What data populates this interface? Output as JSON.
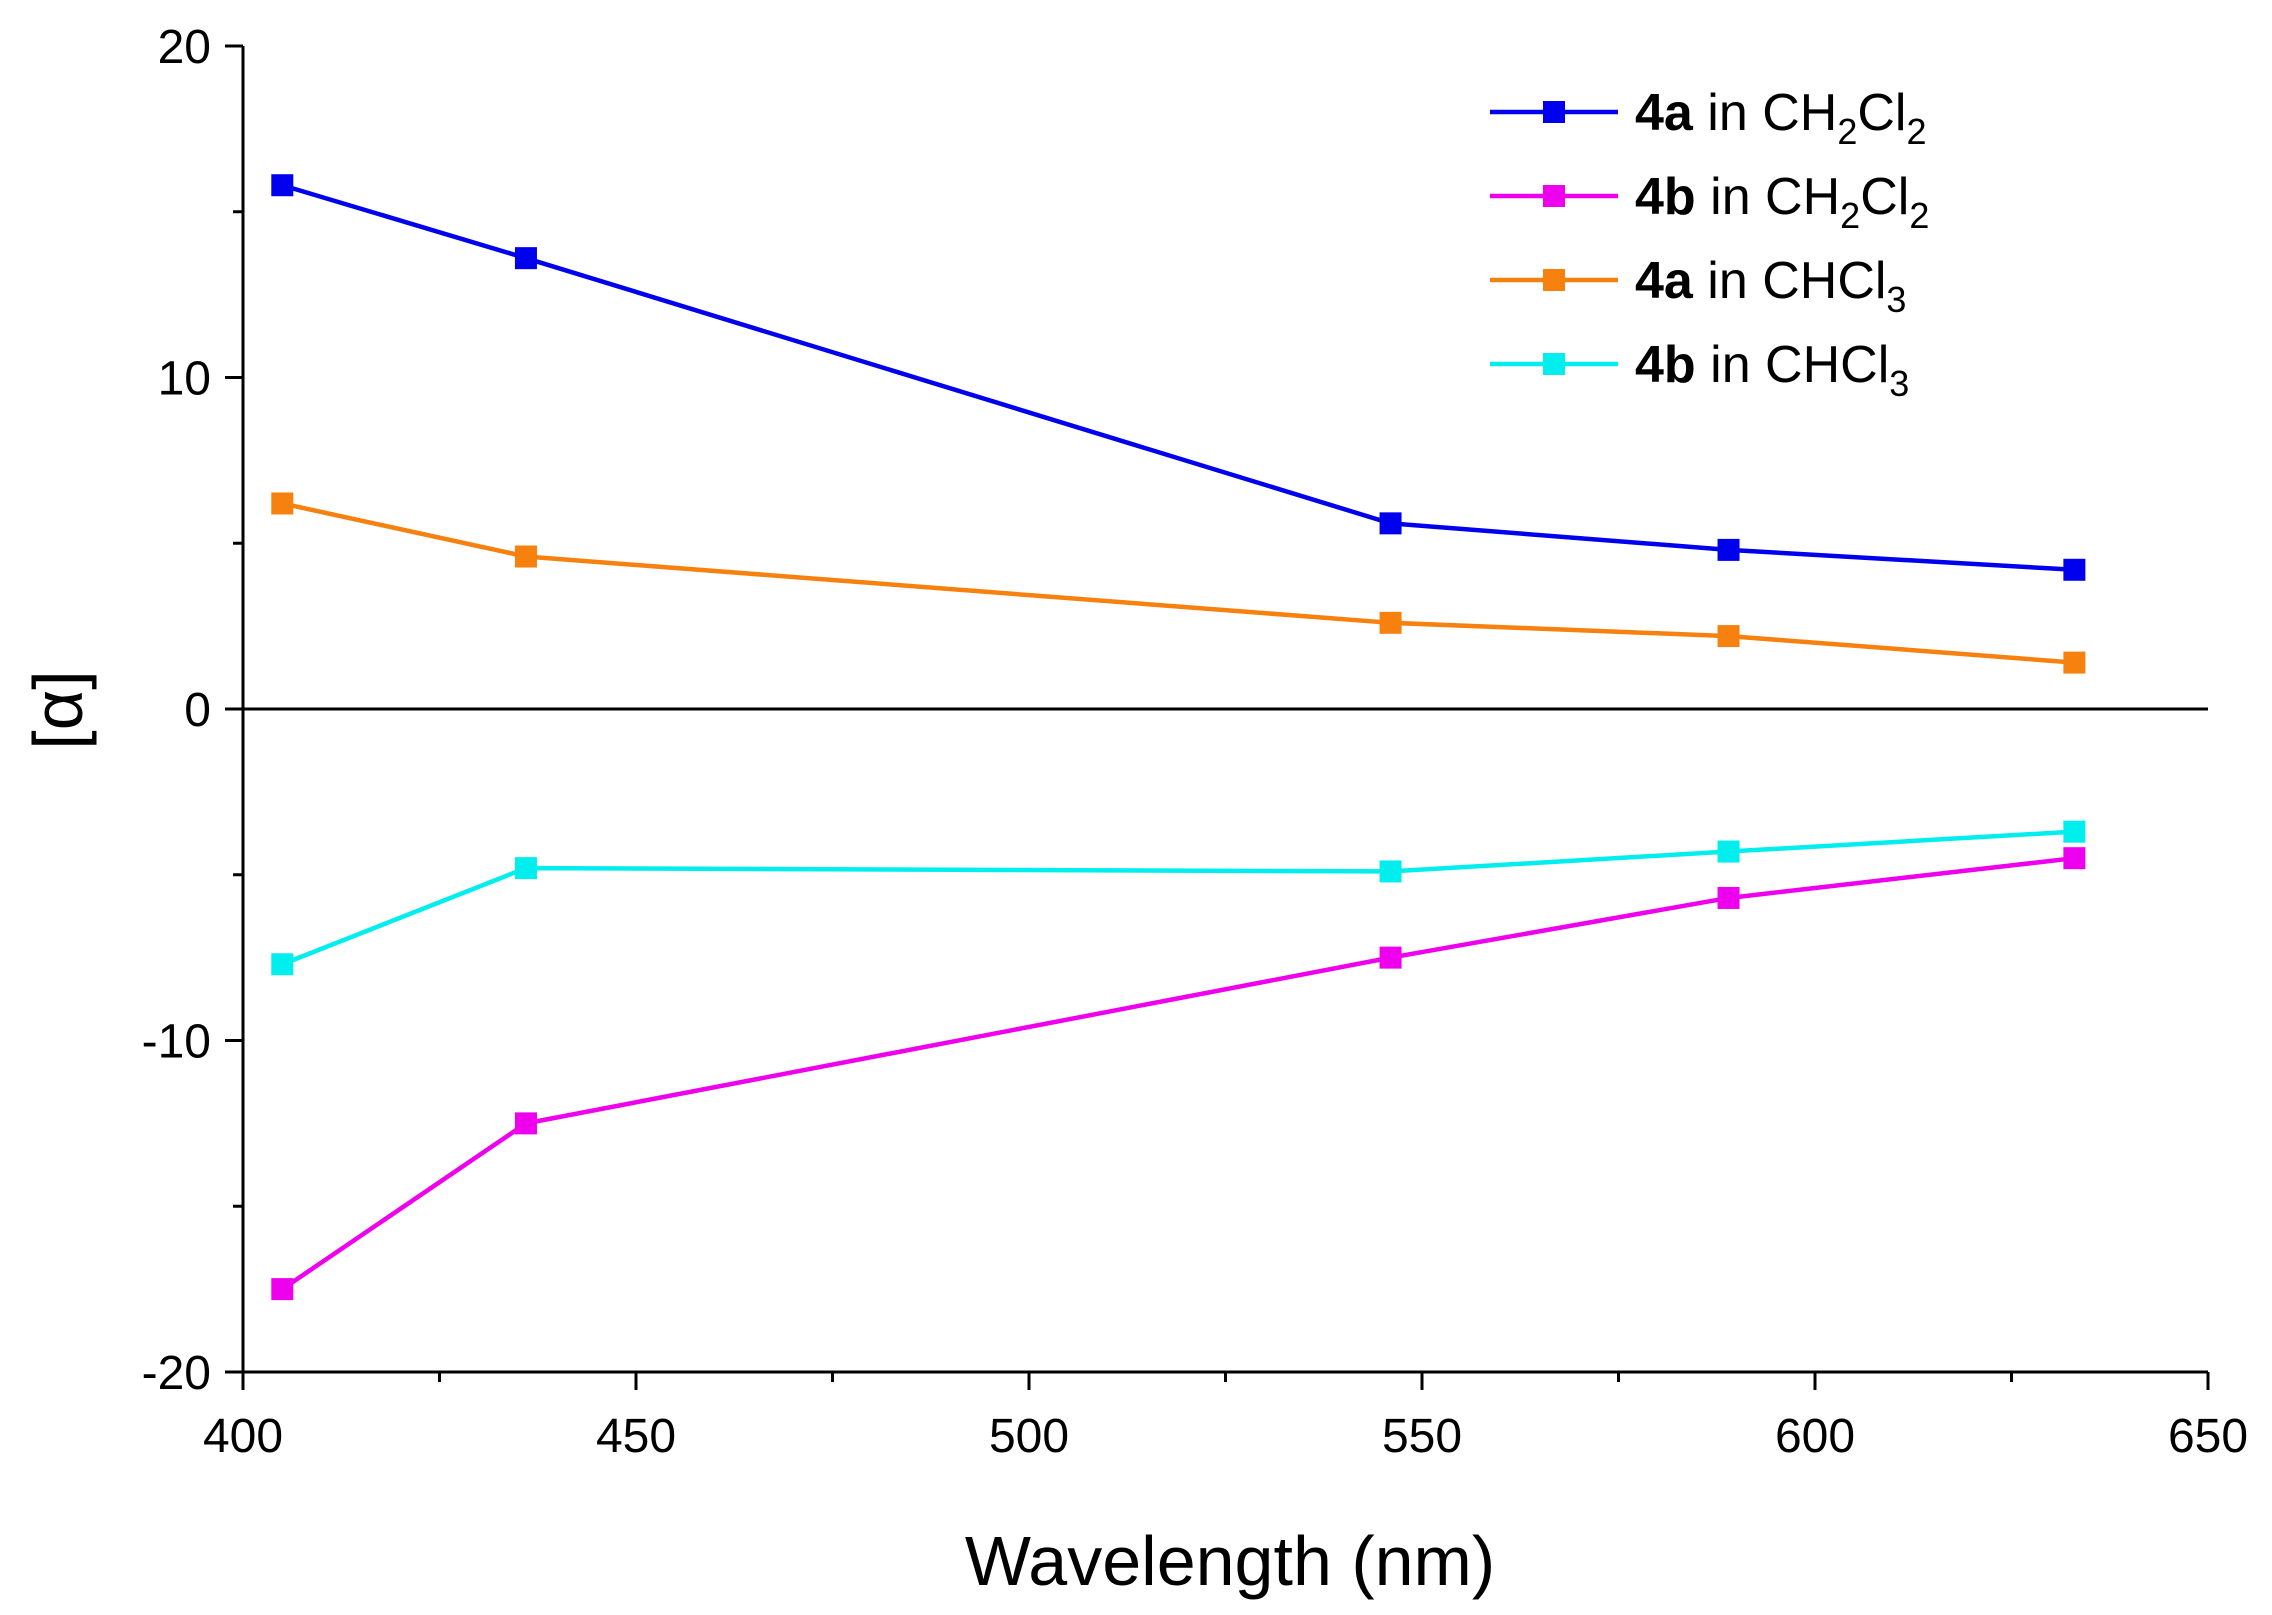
{
  "chart_data": {
    "type": "line",
    "title": "",
    "xlabel": "Wavelength (nm)",
    "ylabel": "[α]",
    "xlim": [
      400,
      650
    ],
    "ylim": [
      -20,
      20
    ],
    "x_ticks": [
      400,
      450,
      500,
      550,
      600,
      650
    ],
    "x_tick_labels": [
      "400",
      "450",
      "500",
      "550",
      "600",
      "650"
    ],
    "y_ticks": [
      -20,
      -10,
      0,
      10,
      20
    ],
    "y_tick_labels": [
      "-20",
      "-10",
      "0",
      "10",
      "20"
    ],
    "zero_line": true,
    "grid": false,
    "legend_position": "top-right",
    "x": [
      405,
      436,
      546,
      589,
      633
    ],
    "series": [
      {
        "name": "4a in CH2Cl2",
        "label_bold": "4a",
        "label_rest": " in CH",
        "sub1": "2",
        "mid": "Cl",
        "sub2": "2",
        "color": "#0000ee",
        "values": [
          15.8,
          13.6,
          5.6,
          4.8,
          4.2
        ]
      },
      {
        "name": "4b in CH2Cl2",
        "label_bold": "4b",
        "label_rest": " in CH",
        "sub1": "2",
        "mid": "Cl",
        "sub2": "2",
        "color": "#ee00ee",
        "values": [
          -17.5,
          -12.5,
          -7.5,
          -5.7,
          -4.5
        ]
      },
      {
        "name": "4a in CHCl3",
        "label_bold": "4a",
        "label_rest": " in CHCl",
        "sub1": "3",
        "mid": "",
        "sub2": "",
        "color": "#f7810f",
        "values": [
          6.2,
          4.6,
          2.6,
          2.2,
          1.4
        ]
      },
      {
        "name": "4b in CHCl3",
        "label_bold": "4b",
        "label_rest": " in CHCl",
        "sub1": "3",
        "mid": "",
        "sub2": "",
        "color": "#00eeee",
        "values": [
          -7.7,
          -4.8,
          -4.9,
          -4.3,
          -3.7
        ]
      }
    ]
  }
}
